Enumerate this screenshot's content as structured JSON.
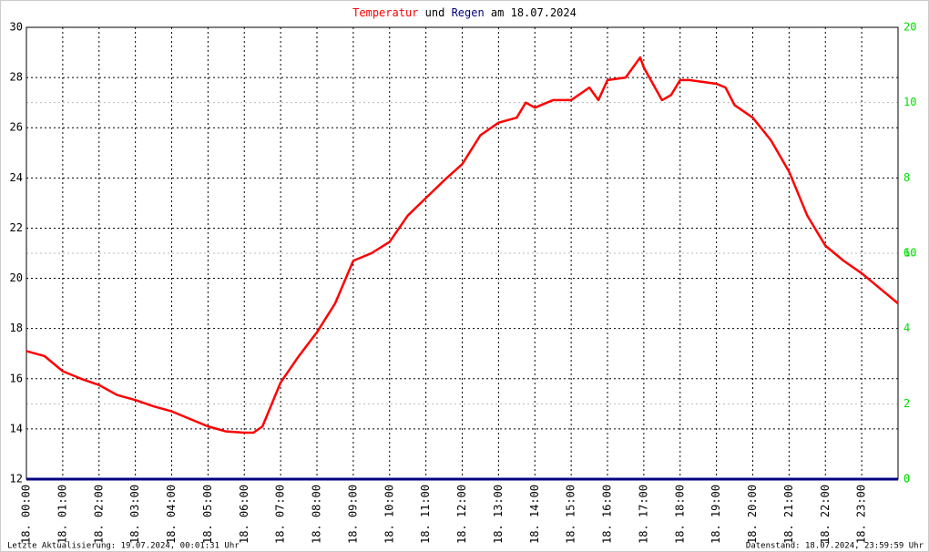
{
  "chart_data": {
    "type": "line",
    "title_join": "und",
    "title_date": "am 18.07.2024",
    "footer_left": "Letzte Aktualisierung: 19.07.2024, 00:01:31 Uhr",
    "footer_right": "Datenstand: 18.07.2024, 23:59:59 Uhr",
    "xlim": [
      0,
      24
    ],
    "xticks": [
      {
        "value": 0,
        "label": "18. 00:00"
      },
      {
        "value": 1,
        "label": "18. 01:00"
      },
      {
        "value": 2,
        "label": "18. 02:00"
      },
      {
        "value": 3,
        "label": "18. 03:00"
      },
      {
        "value": 4,
        "label": "18. 04:00"
      },
      {
        "value": 5,
        "label": "18. 05:00"
      },
      {
        "value": 6,
        "label": "18. 06:00"
      },
      {
        "value": 7,
        "label": "18. 07:00"
      },
      {
        "value": 8,
        "label": "18. 08:00"
      },
      {
        "value": 9,
        "label": "18. 09:00"
      },
      {
        "value": 10,
        "label": "18. 10:00"
      },
      {
        "value": 11,
        "label": "18. 11:00"
      },
      {
        "value": 12,
        "label": "18. 12:00"
      },
      {
        "value": 13,
        "label": "18. 13:00"
      },
      {
        "value": 14,
        "label": "18. 14:00"
      },
      {
        "value": 15,
        "label": "18. 15:00"
      },
      {
        "value": 16,
        "label": "18. 16:00"
      },
      {
        "value": 17,
        "label": "18. 17:00"
      },
      {
        "value": 18,
        "label": "18. 18:00"
      },
      {
        "value": 19,
        "label": "18. 19:00"
      },
      {
        "value": 20,
        "label": "18. 20:00"
      },
      {
        "value": 21,
        "label": "18. 21:00"
      },
      {
        "value": 22,
        "label": "18. 22:00"
      },
      {
        "value": 23,
        "label": "18. 23:00"
      }
    ],
    "ylim": [
      12,
      30
    ],
    "yticks": [
      12,
      14,
      16,
      18,
      20,
      22,
      24,
      26,
      28,
      30
    ],
    "y2lim": [
      0,
      12
    ],
    "y2ticks": [
      0,
      2,
      4,
      6,
      8,
      10
    ],
    "y3lim": [
      0,
      20
    ],
    "y3ticks": [
      0,
      10,
      20
    ],
    "y2color": "#00dd00",
    "grid": true,
    "series": [
      {
        "name": "Temperatur",
        "color": "#ff0000",
        "x": [
          0,
          0.5,
          1,
          1.5,
          2,
          2.5,
          3,
          3.5,
          4,
          4.5,
          5,
          5.5,
          6,
          6.25,
          6.5,
          7,
          7.5,
          8,
          8.5,
          9,
          9.5,
          10,
          10.5,
          11,
          11.5,
          12,
          12.5,
          13,
          13.5,
          13.75,
          14,
          14.5,
          15,
          15.5,
          15.75,
          16,
          16.5,
          16.9,
          17,
          17.5,
          17.75,
          18,
          18.25,
          18.75,
          19,
          19.25,
          19.5,
          20,
          20.5,
          21,
          21.5,
          22,
          22.5,
          23,
          23.5,
          24
        ],
        "values": [
          17.1,
          16.9,
          16.3,
          16.0,
          15.75,
          15.35,
          15.15,
          14.9,
          14.7,
          14.4,
          14.1,
          13.9,
          13.85,
          13.85,
          14.1,
          15.85,
          16.9,
          17.85,
          19.0,
          20.7,
          21.0,
          21.45,
          22.5,
          23.2,
          23.9,
          24.55,
          25.7,
          26.2,
          26.4,
          27.0,
          26.8,
          27.1,
          27.1,
          27.6,
          27.1,
          27.9,
          28.0,
          28.8,
          28.4,
          27.1,
          27.3,
          27.9,
          27.9,
          27.8,
          27.75,
          27.6,
          26.9,
          26.4,
          25.5,
          24.25,
          22.5,
          21.3,
          20.7,
          20.2,
          19.6,
          19.0
        ]
      },
      {
        "name": "Regen",
        "color": "#000080",
        "axis": "y2",
        "x": [
          0,
          24
        ],
        "values": [
          0,
          0
        ]
      }
    ]
  }
}
